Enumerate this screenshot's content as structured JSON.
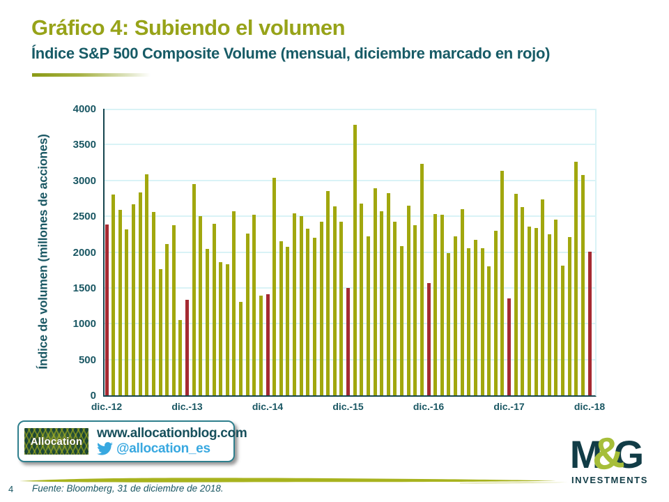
{
  "header": {
    "title": "Gráfico 4: Subiendo el volumen",
    "subtitle": "Índice S&P 500 Composite Volume (mensual, diciembre marcado en rojo)"
  },
  "chart_data": {
    "type": "bar",
    "title": "Índice S&P 500 Composite Volume (mensual, diciembre marcado en rojo)",
    "ylabel": "Índice de volumen (millones de acciones)",
    "xlabel": "",
    "ylim": [
      0,
      4000
    ],
    "yticks": [
      0,
      500,
      1000,
      1500,
      2000,
      2500,
      3000,
      3500,
      4000
    ],
    "grid": true,
    "legend": false,
    "frequency": "monthly",
    "start_month": "dic.-12",
    "end_month": "dic.-18",
    "x_tick_labels": [
      "dic.-12",
      "dic.-13",
      "dic.-14",
      "dic.-15",
      "dic.-16",
      "dic.-17",
      "dic.-18"
    ],
    "x_tick_indices": [
      0,
      12,
      24,
      36,
      48,
      60,
      72
    ],
    "december_indices": [
      0,
      12,
      24,
      36,
      48,
      60,
      72
    ],
    "values": [
      2380,
      2800,
      2590,
      2320,
      2670,
      2830,
      3090,
      2560,
      1760,
      2110,
      2370,
      1050,
      1330,
      2950,
      2500,
      2040,
      2390,
      1860,
      1830,
      2570,
      1300,
      2260,
      2520,
      1390,
      1410,
      3040,
      2150,
      2070,
      2540,
      2500,
      2330,
      2200,
      2420,
      2850,
      2640,
      2420,
      1500,
      3780,
      2680,
      2220,
      2890,
      2570,
      2820,
      2420,
      2080,
      2650,
      2370,
      3230,
      1570,
      2530,
      2520,
      1990,
      2220,
      2600,
      2050,
      2170,
      2050,
      1800,
      2300,
      3130,
      1350,
      2810,
      2630,
      2360,
      2340,
      2730,
      2250,
      2450,
      1810,
      2210,
      3260,
      3080,
      2000
    ],
    "colors": {
      "bar": "#A1A70E",
      "december_bar": "#A52A32",
      "axis": "#16454E",
      "gridline": "#D9F3F6",
      "tick_text": "#1A5763"
    }
  },
  "branding": {
    "allocation_logo_text": "Allocation",
    "website": "www.allocationblog.com",
    "twitter_handle": "@allocation_es",
    "mg_logo": {
      "m": "M",
      "amp": "&",
      "g": "G",
      "sub": "INVESTMENTS"
    }
  },
  "footer": {
    "page_number": "4",
    "source": "Fuente: Bloomberg, 31 de diciembre de 2018."
  }
}
